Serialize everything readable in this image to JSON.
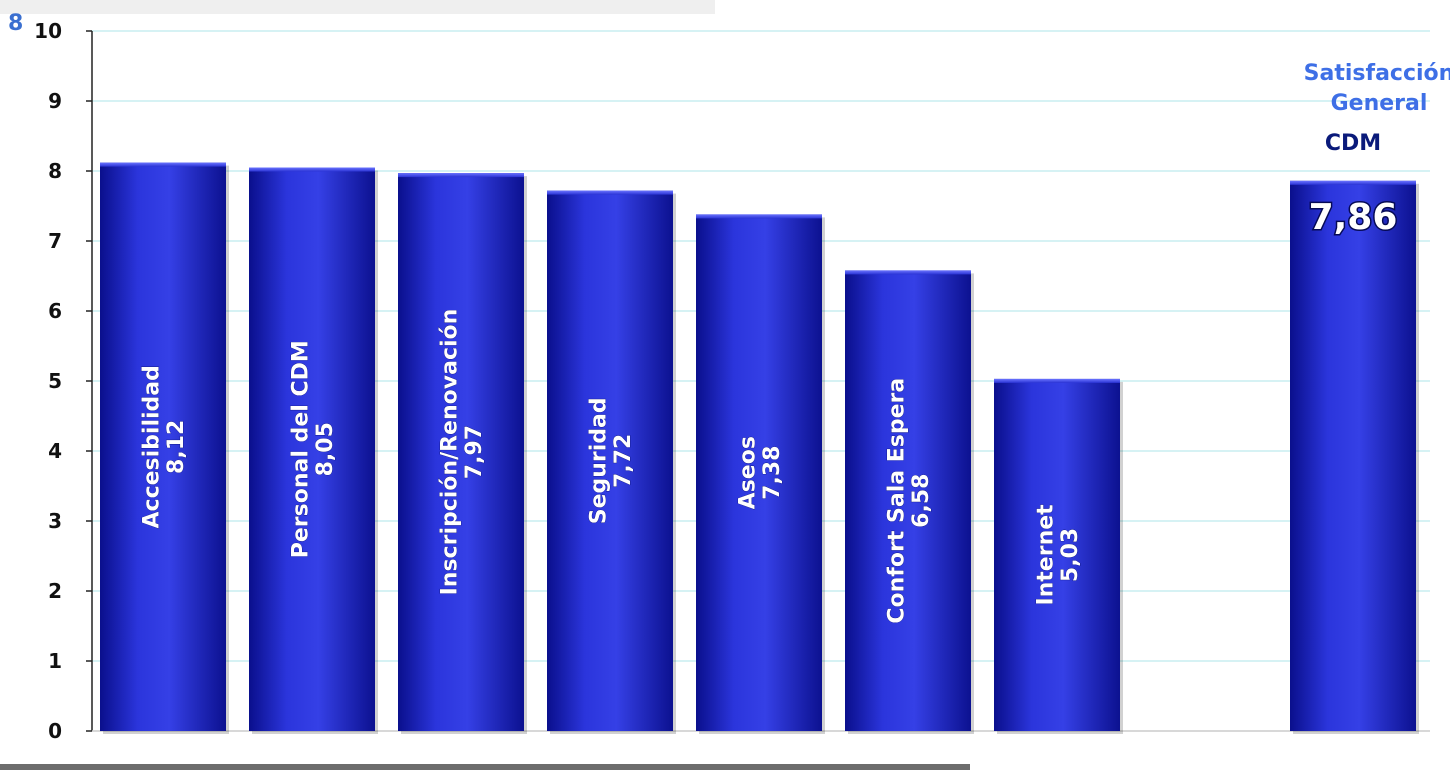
{
  "corner_mark": "8",
  "colors": {
    "bar_dark": "#0a0f8c",
    "bar_mid": "#2730d6",
    "bar_light": "#4a55f0",
    "grid": "#d6f2f4",
    "axis": "#222222",
    "title_blue": "#3e6fe6",
    "title_dark": "#0a1a7a"
  },
  "chart_data": {
    "type": "bar",
    "ylim": [
      0,
      10
    ],
    "yticks": [
      "0",
      "1",
      "2",
      "3",
      "4",
      "5",
      "6",
      "7",
      "8",
      "9",
      "10"
    ],
    "grid": true,
    "categories": [
      "Accesibilidad",
      "Personal del CDM",
      "Inscripción/Renovación",
      "Seguridad",
      "Aseos",
      "Confort Sala Espera",
      "Internet"
    ],
    "values": [
      8.12,
      8.05,
      7.97,
      7.72,
      7.38,
      6.58,
      5.03
    ],
    "value_labels": [
      "8,12",
      "8,05",
      "7,97",
      "7,72",
      "7,38",
      "6,58",
      "5,03"
    ],
    "summary": {
      "title_lines": [
        "Satisfacción",
        "General"
      ],
      "subtitle": "CDM",
      "value": 7.86,
      "value_label": "7,86"
    }
  }
}
